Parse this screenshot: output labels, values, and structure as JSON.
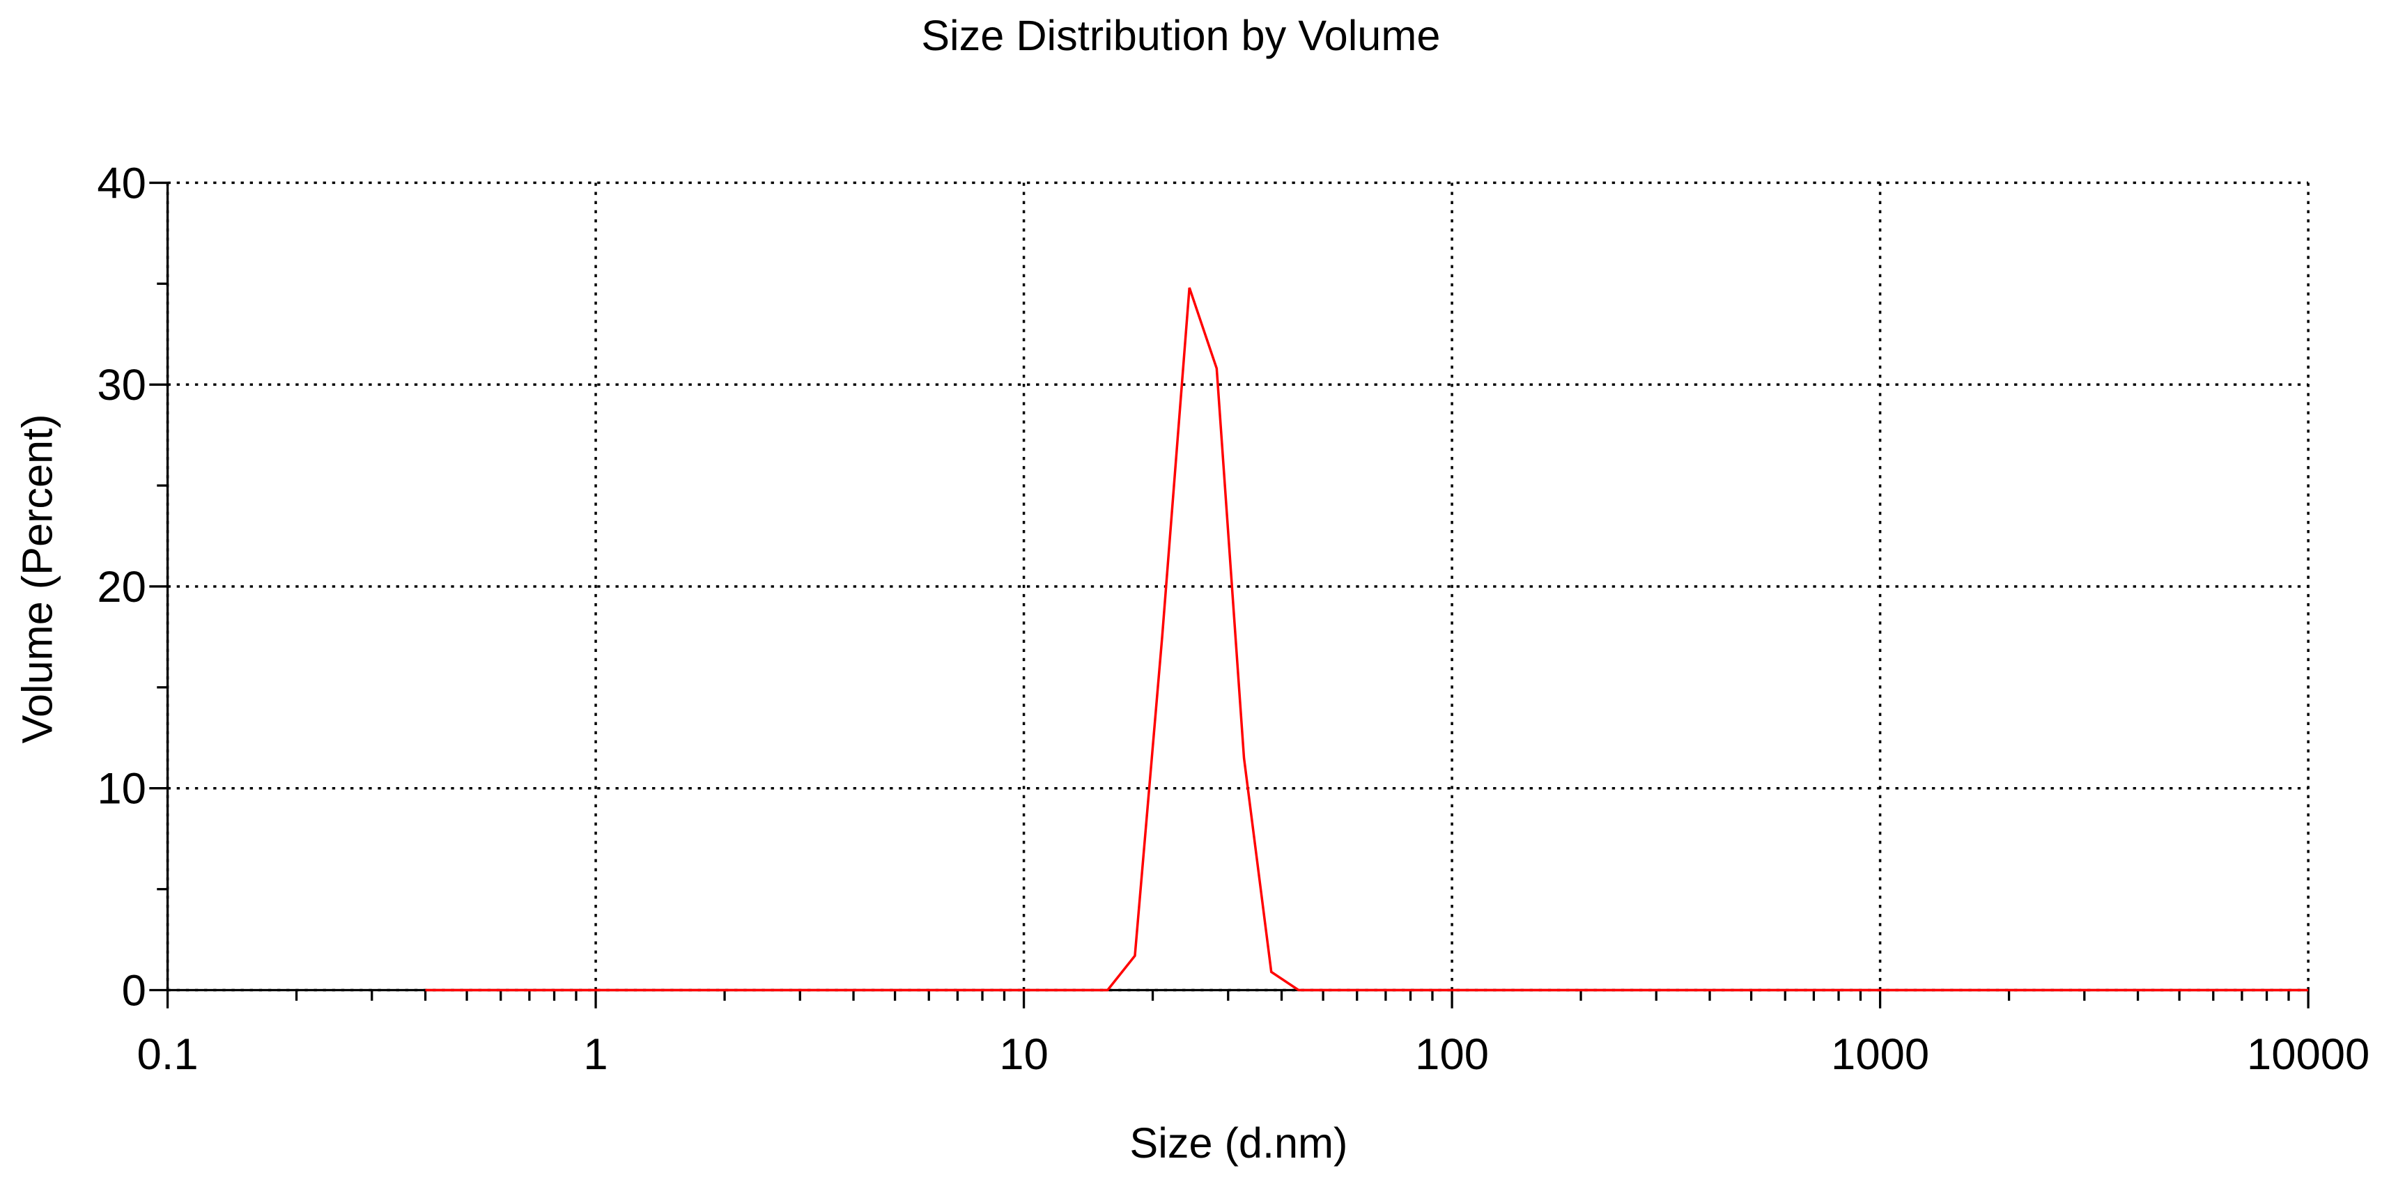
{
  "chart_data": {
    "type": "line",
    "title": "Size Distribution by Volume",
    "x_label": "Size (d.nm)",
    "y_label": "Volume (Percent)",
    "x_scale": "log",
    "grid": true,
    "color": "#ff0000",
    "xlim": [
      0.1,
      10000
    ],
    "ylim": [
      0,
      40
    ],
    "xticks": [
      0.1,
      1,
      10,
      100,
      1000,
      10000
    ],
    "yticks": [
      0,
      10,
      20,
      30,
      40
    ],
    "x": [
      0.4,
      0.4632,
      0.5365,
      0.6213,
      0.7195,
      0.8332,
      0.9649,
      1.117,
      1.294,
      1.499,
      1.736,
      2.01,
      2.328,
      2.696,
      3.122,
      3.615,
      4.187,
      4.849,
      5.615,
      6.503,
      7.531,
      8.721,
      10.1,
      11.7,
      13.54,
      15.69,
      18.17,
      21.04,
      24.36,
      28.21,
      32.67,
      37.84,
      43.82,
      50.75,
      58.77,
      68.06,
      78.82,
      91.28,
      105.7,
      122.4,
      141.8,
      164.2,
      190.1,
      220.2,
      255,
      295.3,
      342,
      396.1,
      458.7,
      531.2,
      615.1,
      712.4,
      825,
      955.4,
      1106,
      1281,
      1484,
      1718,
      1990,
      2305,
      2669,
      3091,
      3580,
      4145,
      4801,
      5560,
      6439,
      7456,
      8635,
      10000
    ],
    "values": [
      0,
      0,
      0,
      0,
      0,
      0,
      0,
      0,
      0,
      0,
      0,
      0,
      0,
      0,
      0,
      0,
      0,
      0,
      0,
      0,
      0,
      0,
      0,
      0,
      0,
      0,
      1.7,
      17.5,
      34.8,
      30.8,
      11.5,
      0.9,
      0,
      0,
      0,
      0,
      0,
      0,
      0,
      0,
      0,
      0,
      0,
      0,
      0,
      0,
      0,
      0,
      0,
      0,
      0,
      0,
      0,
      0,
      0,
      0,
      0,
      0,
      0,
      0,
      0,
      0,
      0,
      0,
      0,
      0,
      0,
      0,
      0,
      0
    ]
  }
}
